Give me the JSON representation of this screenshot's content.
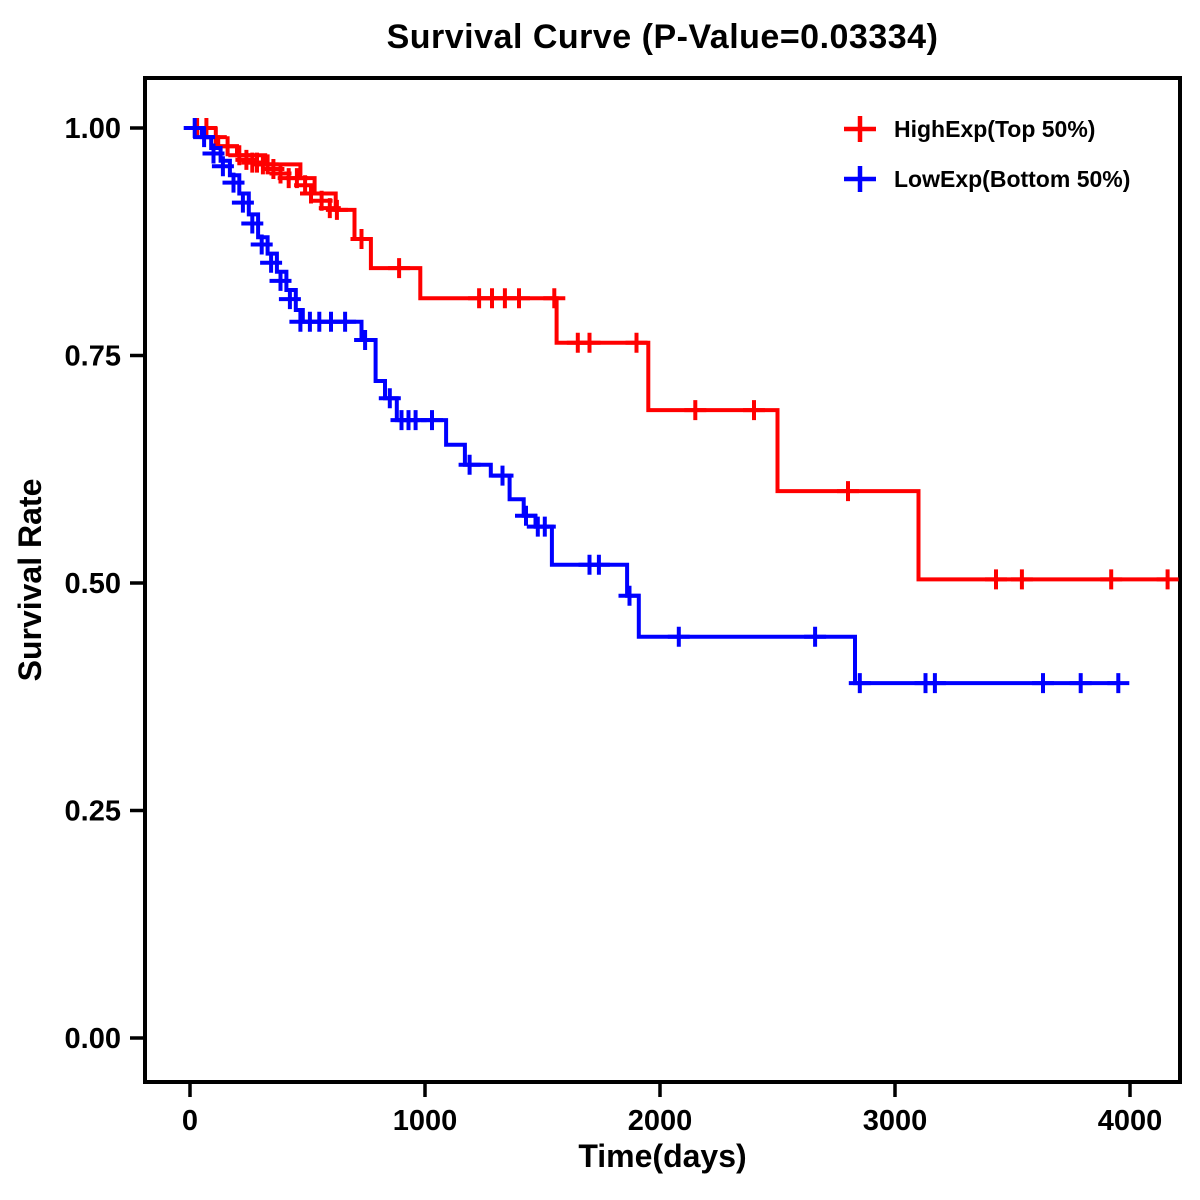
{
  "chart_data": {
    "type": "line",
    "variant": "kaplan-meier-step",
    "title": "Survival Curve (P-Value=0.03334)",
    "xlabel": "Time(days)",
    "ylabel": "Survival Rate",
    "grid": false,
    "legend_position": "top-right",
    "axis_color": "#000000",
    "xlim": [
      -190,
      4300
    ],
    "ylim": [
      -0.06,
      1.06
    ],
    "x_ticks": [
      {
        "value": 0,
        "label": "0"
      },
      {
        "value": 1000,
        "label": "1000"
      },
      {
        "value": 2000,
        "label": "2000"
      },
      {
        "value": 3000,
        "label": "3000"
      },
      {
        "value": 4000,
        "label": "4000"
      }
    ],
    "y_ticks": [
      {
        "value": 0.0,
        "label": "0.00"
      },
      {
        "value": 0.25,
        "label": "0.25"
      },
      {
        "value": 0.5,
        "label": "0.50"
      },
      {
        "value": 0.75,
        "label": "0.75"
      },
      {
        "value": 1.0,
        "label": "1.00"
      }
    ],
    "series": [
      {
        "name": "HighExp(Top 50%)",
        "color": "#FF0000",
        "end_time": 4160,
        "steps": [
          [
            0,
            1.0
          ],
          [
            60,
            0.99
          ],
          [
            120,
            0.98
          ],
          [
            200,
            0.97
          ],
          [
            320,
            0.96
          ],
          [
            470,
            0.945
          ],
          [
            530,
            0.928
          ],
          [
            620,
            0.91
          ],
          [
            700,
            0.878
          ],
          [
            770,
            0.846
          ],
          [
            980,
            0.813
          ],
          [
            1560,
            0.764
          ],
          [
            1950,
            0.69
          ],
          [
            2500,
            0.601
          ],
          [
            3100,
            0.504
          ]
        ],
        "censors": [
          [
            30,
            1.0
          ],
          [
            70,
            1.0
          ],
          [
            110,
            0.99
          ],
          [
            160,
            0.98
          ],
          [
            210,
            0.97
          ],
          [
            240,
            0.965
          ],
          [
            265,
            0.962
          ],
          [
            285,
            0.962
          ],
          [
            310,
            0.96
          ],
          [
            330,
            0.96
          ],
          [
            355,
            0.955
          ],
          [
            385,
            0.95
          ],
          [
            420,
            0.945
          ],
          [
            455,
            0.945
          ],
          [
            490,
            0.937
          ],
          [
            515,
            0.928
          ],
          [
            560,
            0.92
          ],
          [
            595,
            0.912
          ],
          [
            625,
            0.91
          ],
          [
            730,
            0.878
          ],
          [
            890,
            0.846
          ],
          [
            1230,
            0.813
          ],
          [
            1285,
            0.813
          ],
          [
            1340,
            0.813
          ],
          [
            1400,
            0.813
          ],
          [
            1550,
            0.813
          ],
          [
            1650,
            0.764
          ],
          [
            1700,
            0.764
          ],
          [
            1900,
            0.764
          ],
          [
            2150,
            0.69
          ],
          [
            2400,
            0.69
          ],
          [
            2800,
            0.601
          ],
          [
            3430,
            0.504
          ],
          [
            3540,
            0.504
          ],
          [
            3920,
            0.504
          ],
          [
            4160,
            0.504
          ]
        ]
      },
      {
        "name": "LowExp(Bottom 50%)",
        "color": "#0000FF",
        "end_time": 3950,
        "steps": [
          [
            0,
            1.0
          ],
          [
            50,
            0.99
          ],
          [
            90,
            0.978
          ],
          [
            130,
            0.964
          ],
          [
            170,
            0.948
          ],
          [
            210,
            0.928
          ],
          [
            250,
            0.905
          ],
          [
            290,
            0.88
          ],
          [
            330,
            0.862
          ],
          [
            370,
            0.842
          ],
          [
            410,
            0.822
          ],
          [
            450,
            0.8
          ],
          [
            480,
            0.787
          ],
          [
            730,
            0.767
          ],
          [
            790,
            0.722
          ],
          [
            830,
            0.703
          ],
          [
            880,
            0.679
          ],
          [
            1090,
            0.652
          ],
          [
            1170,
            0.63
          ],
          [
            1280,
            0.618
          ],
          [
            1360,
            0.592
          ],
          [
            1420,
            0.574
          ],
          [
            1470,
            0.562
          ],
          [
            1540,
            0.52
          ],
          [
            1860,
            0.486
          ],
          [
            1910,
            0.441
          ],
          [
            2830,
            0.39
          ]
        ],
        "censors": [
          [
            20,
            1.0
          ],
          [
            60,
            0.99
          ],
          [
            100,
            0.972
          ],
          [
            140,
            0.958
          ],
          [
            185,
            0.94
          ],
          [
            225,
            0.918
          ],
          [
            265,
            0.895
          ],
          [
            305,
            0.872
          ],
          [
            345,
            0.852
          ],
          [
            385,
            0.832
          ],
          [
            425,
            0.812
          ],
          [
            470,
            0.787
          ],
          [
            510,
            0.787
          ],
          [
            550,
            0.787
          ],
          [
            600,
            0.787
          ],
          [
            660,
            0.787
          ],
          [
            745,
            0.767
          ],
          [
            850,
            0.703
          ],
          [
            900,
            0.679
          ],
          [
            930,
            0.679
          ],
          [
            960,
            0.679
          ],
          [
            1030,
            0.679
          ],
          [
            1190,
            0.63
          ],
          [
            1330,
            0.618
          ],
          [
            1430,
            0.574
          ],
          [
            1480,
            0.562
          ],
          [
            1510,
            0.562
          ],
          [
            1700,
            0.52
          ],
          [
            1740,
            0.52
          ],
          [
            1870,
            0.486
          ],
          [
            2080,
            0.441
          ],
          [
            2660,
            0.441
          ],
          [
            2850,
            0.39
          ],
          [
            3130,
            0.39
          ],
          [
            3170,
            0.39
          ],
          [
            3630,
            0.39
          ],
          [
            3790,
            0.39
          ],
          [
            3950,
            0.39
          ]
        ]
      }
    ]
  }
}
